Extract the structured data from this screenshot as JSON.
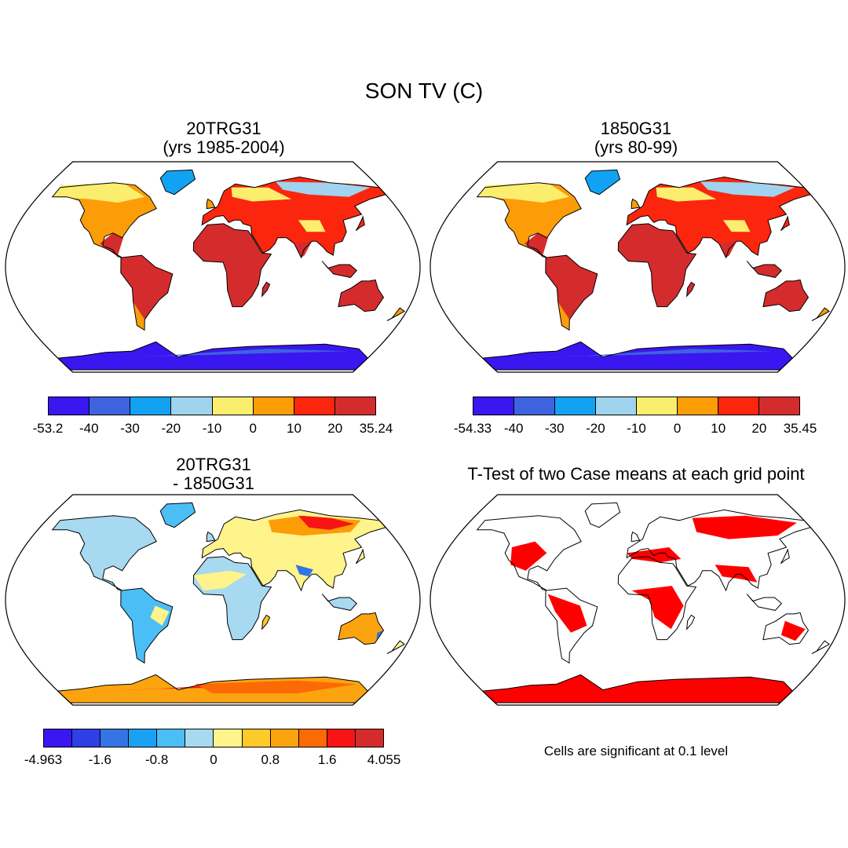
{
  "figure": {
    "title": "SON TV (C)",
    "panels": [
      {
        "title_lines": [
          "20TRG31",
          "(yrs 1985-2004)"
        ],
        "colorbar": {
          "colors": [
            "#3a16f0",
            "#3d64de",
            "#12a2f4",
            "#9fd3ee",
            "#fbed6e",
            "#fc9d08",
            "#fb260d",
            "#d42c2c"
          ],
          "labels": [
            "-53.2",
            "-40",
            "-30",
            "-20",
            "-10",
            "0",
            "10",
            "20",
            "35.24"
          ]
        }
      },
      {
        "title_lines": [
          "1850G31",
          "(yrs 80-99)"
        ],
        "colorbar": {
          "colors": [
            "#3a16f0",
            "#3d64de",
            "#12a2f4",
            "#9fd3ee",
            "#fbed6e",
            "#fc9d08",
            "#fb260d",
            "#d42c2c"
          ],
          "labels": [
            "-54.33",
            "-40",
            "-30",
            "-20",
            "-10",
            "0",
            "10",
            "20",
            "35.45"
          ]
        }
      },
      {
        "title_lines": [
          "20TRG31",
          "- 1850G31"
        ],
        "colorbar": {
          "colors": [
            "#3a16f0",
            "#2e3fe3",
            "#3574e4",
            "#1ba1f4",
            "#4cbef6",
            "#a7d9f1",
            "#fff38b",
            "#fdca2a",
            "#fca40f",
            "#fc6a05",
            "#f71414",
            "#d42c2c"
          ],
          "labels": [
            "-4.963",
            "-1.6",
            "-0.8",
            "0",
            "0.8",
            "1.6",
            "4.055"
          ]
        }
      },
      {
        "title_lines": [
          "T-Test of two Case means at each grid point"
        ],
        "note": "Cells are significant at 0.1 level",
        "significant_color": "#ff0000"
      }
    ]
  }
}
